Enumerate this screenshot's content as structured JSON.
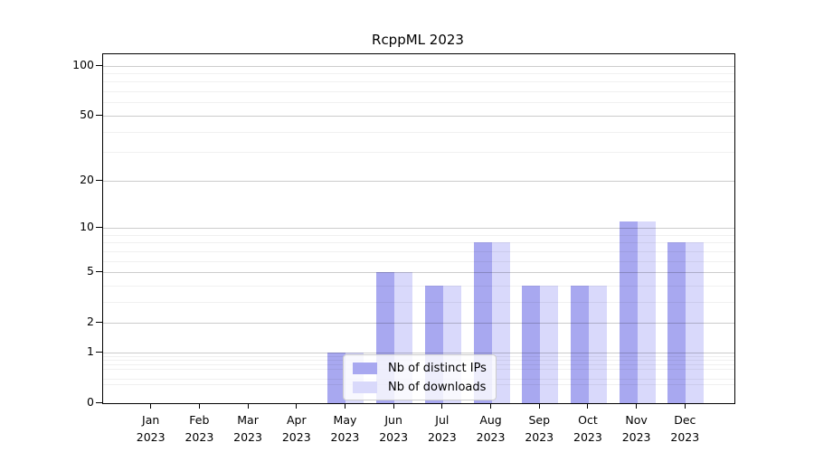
{
  "chart_data": {
    "type": "bar",
    "title": "RcppML 2023",
    "categories": [
      "Jan",
      "Feb",
      "Mar",
      "Apr",
      "May",
      "Jun",
      "Jul",
      "Aug",
      "Sep",
      "Oct",
      "Nov",
      "Dec"
    ],
    "year": "2023",
    "series": [
      {
        "name": "Nb of distinct IPs",
        "color": "#a8a8f0",
        "values": [
          0,
          0,
          0,
          0,
          1,
          5,
          4,
          8,
          4,
          4,
          11,
          8
        ]
      },
      {
        "name": "Nb of downloads",
        "color": "#d9d9fb",
        "values": [
          0,
          0,
          0,
          0,
          1,
          5,
          4,
          8,
          4,
          4,
          11,
          8
        ]
      }
    ],
    "xlabel": "",
    "ylabel": "",
    "yscale": "log1p",
    "ylim": [
      0,
      117
    ],
    "yticks": [
      0,
      1,
      2,
      5,
      10,
      20,
      50,
      100
    ],
    "yticks_minor": [
      0.3,
      0.4,
      0.6,
      0.7,
      0.8,
      0.9,
      3,
      4,
      6,
      7,
      8,
      9,
      30,
      40,
      60,
      70,
      80,
      90
    ],
    "grid": true,
    "legend_position": "lower center, inside plot"
  },
  "colors": {
    "background": "#ffffff",
    "spine": "#000000",
    "grid_major": "rgba(0,0,0,0.20)",
    "grid_minor": "rgba(0,0,0,0.06)",
    "legend_background": "rgba(255,255,255,0.8)",
    "legend_border": "#cccccc"
  }
}
